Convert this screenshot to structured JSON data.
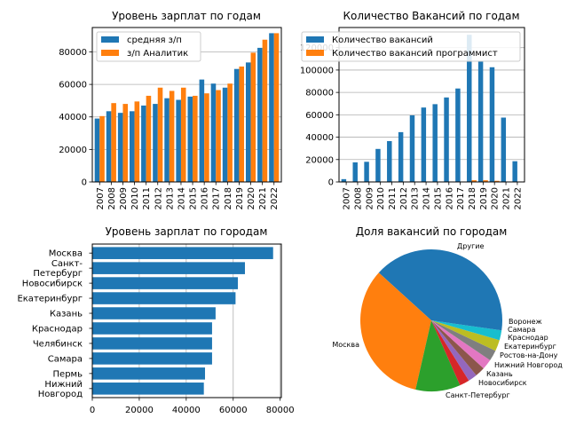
{
  "colors": {
    "blue": "#1f77b4",
    "orange": "#ff7f0e"
  },
  "chart_data": [
    {
      "type": "bar",
      "title": "Уровень зарплат по годам",
      "categories": [
        "2007",
        "2008",
        "2009",
        "2010",
        "2011",
        "2012",
        "2013",
        "2014",
        "2015",
        "2016",
        "2017",
        "2018",
        "2019",
        "2020",
        "2021",
        "2022"
      ],
      "series": [
        {
          "name": "средняя з/п",
          "values": [
            39000,
            43500,
            42500,
            43500,
            47000,
            48000,
            51500,
            50500,
            52500,
            63000,
            60500,
            58000,
            69500,
            73500,
            82500,
            91500
          ]
        },
        {
          "name": "з/п Аналитик",
          "values": [
            40500,
            48500,
            48000,
            49500,
            53000,
            58000,
            56000,
            58000,
            53000,
            54500,
            56500,
            60500,
            71000,
            79500,
            87500,
            91500
          ]
        }
      ],
      "ylim": [
        0,
        95000
      ],
      "yticks": [
        0,
        20000,
        40000,
        60000,
        80000
      ],
      "grid": "y",
      "legend": "top-left"
    },
    {
      "type": "bar",
      "title": "Количество Вакансий по годам",
      "categories": [
        "2007",
        "2008",
        "2009",
        "2010",
        "2011",
        "2012",
        "2013",
        "2014",
        "2015",
        "2016",
        "2017",
        "2018",
        "2019",
        "2020",
        "2021",
        "2022"
      ],
      "series": [
        {
          "name": "Количество вакансий",
          "values": [
            2500,
            17500,
            18000,
            29500,
            36500,
            44500,
            59500,
            66500,
            69500,
            75500,
            83500,
            131500,
            108000,
            102500,
            57500,
            18500
          ]
        },
        {
          "name": "Количество вакансий программист",
          "values": [
            0,
            0,
            0,
            0,
            0,
            0,
            0,
            0,
            0,
            0,
            0,
            1500,
            1500,
            1000,
            0,
            0
          ]
        }
      ],
      "ylim": [
        0,
        138000
      ],
      "yticks": [
        0,
        20000,
        40000,
        60000,
        80000,
        100000,
        120000
      ],
      "grid": "y",
      "legend": "top"
    },
    {
      "type": "bar",
      "orientation": "horizontal",
      "title": "Уровень зарплат по городам",
      "categories": [
        "Москва",
        "Санкт-\nПетербург",
        "Новосибирск",
        "Екатеринбург",
        "Казань",
        "Краснодар",
        "Челябинск",
        "Самара",
        "Пермь",
        "Нижний\nНовгород"
      ],
      "values": [
        77000,
        65000,
        62000,
        61000,
        52500,
        51000,
        51000,
        51000,
        48000,
        47500
      ],
      "xlim": [
        0,
        80500
      ],
      "xticks": [
        0,
        20000,
        40000,
        60000,
        80000
      ],
      "grid": "x"
    },
    {
      "type": "pie",
      "title": "Доля вакансий по городам",
      "labels": [
        "Другие",
        "Москва",
        "Санкт-Петербург",
        "Новосибирск",
        "Казань",
        "Нижний Новгород",
        "Ростов-на-Дону",
        "Екатеринбург",
        "Краснодар",
        "Самара",
        "Воронеж"
      ],
      "values": [
        37.5,
        32.5,
        10.0,
        2.2,
        2.0,
        2.2,
        2.3,
        2.4,
        2.5,
        2.2,
        2.2
      ],
      "colors": [
        "#1f77b4",
        "#ff7f0e",
        "#2ca02c",
        "#d62728",
        "#9467bd",
        "#8c564b",
        "#e377c2",
        "#7f7f7f",
        "#bcbd22",
        "#17becf",
        "#1f77b4"
      ]
    }
  ]
}
